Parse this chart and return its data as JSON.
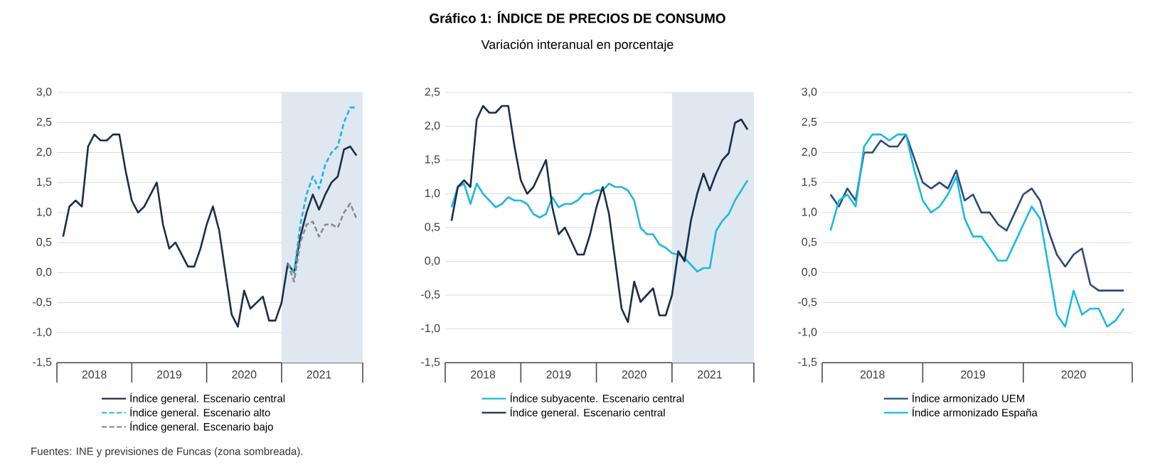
{
  "chart_data": [
    {
      "type": "other",
      "title": "Gráfico 1: ÍNDICE DE PRECIOS DE CONSUMO",
      "subtitle": "Variación interanual en porcentaje",
      "annotations": [
        "Fuentes: INE y previsiones de Funcas (zona sombreada)."
      ]
    },
    {
      "type": "line",
      "x": [
        "2018-01",
        "2018-02",
        "2018-03",
        "2018-04",
        "2018-05",
        "2018-06",
        "2018-07",
        "2018-08",
        "2018-09",
        "2018-10",
        "2018-11",
        "2018-12",
        "2019-01",
        "2019-02",
        "2019-03",
        "2019-04",
        "2019-05",
        "2019-06",
        "2019-07",
        "2019-08",
        "2019-09",
        "2019-10",
        "2019-11",
        "2019-12",
        "2020-01",
        "2020-02",
        "2020-03",
        "2020-04",
        "2020-05",
        "2020-06",
        "2020-07",
        "2020-08",
        "2020-09",
        "2020-10",
        "2020-11",
        "2020-12",
        "2021-01",
        "2021-02",
        "2021-03",
        "2021-04",
        "2021-05",
        "2021-06",
        "2021-07",
        "2021-08",
        "2021-09",
        "2021-10",
        "2021-11",
        "2021-12"
      ],
      "xlim": [
        "2017-12",
        "2022-01"
      ],
      "xticks": [
        {
          "value": "2017-12",
          "label": null
        },
        {
          "value": "2018-06",
          "label": "2018"
        },
        {
          "value": "2018-12",
          "label": null
        },
        {
          "value": "2019-06",
          "label": "2019"
        },
        {
          "value": "2019-12",
          "label": null
        },
        {
          "value": "2020-06",
          "label": "2020"
        },
        {
          "value": "2020-12",
          "label": null
        },
        {
          "value": "2021-06",
          "label": "2021"
        },
        {
          "value": "2022-01",
          "label": null
        }
      ],
      "ylim": [
        -1.5,
        3.0
      ],
      "yticks": [
        {
          "value": -1.5,
          "label": "-1,5"
        },
        {
          "value": -1.0,
          "label": "-1,0"
        },
        {
          "value": -0.5,
          "label": "-0,5"
        },
        {
          "value": 0,
          "label": "0,0"
        },
        {
          "value": 0.5,
          "label": "0,5"
        },
        {
          "value": 1.0,
          "label": "1,0"
        },
        {
          "value": 1.5,
          "label": "1,5"
        },
        {
          "value": 2.0,
          "label": "2,0"
        },
        {
          "value": 2.5,
          "label": "2,5"
        },
        {
          "value": 3.0,
          "label": "3,0"
        }
      ],
      "grid": "y",
      "legend": "bottom",
      "marker": "none",
      "bands": [
        {
          "axis": "x",
          "from": "2020-12",
          "to": "2022-01",
          "color": "#dfe8f1"
        }
      ],
      "series": [
        {
          "name": "Índice general. Escenario central",
          "color": "#1c2e4a",
          "line_style": "solid",
          "values": [
            0.6,
            1.1,
            1.2,
            1.1,
            2.1,
            2.3,
            2.2,
            2.2,
            2.3,
            2.3,
            1.7,
            1.2,
            1.0,
            1.1,
            1.3,
            1.5,
            0.8,
            0.4,
            0.5,
            0.3,
            0.1,
            0.1,
            0.4,
            0.8,
            1.1,
            0.7,
            0.0,
            -0.7,
            -0.9,
            -0.3,
            -0.6,
            -0.5,
            -0.4,
            -0.8,
            -0.8,
            -0.5,
            0.15,
            0.0,
            0.6,
            1.0,
            1.3,
            1.05,
            1.3,
            1.5,
            1.6,
            2.05,
            2.1,
            1.95
          ]
        },
        {
          "name": "Índice general. Escenario alto",
          "color": "#1eb4e6",
          "line_style": "dashed",
          "x": [
            "2021-01",
            "2021-02",
            "2021-03",
            "2021-04",
            "2021-05",
            "2021-06",
            "2021-07",
            "2021-08",
            "2021-09",
            "2021-10",
            "2021-11",
            "2021-12"
          ],
          "values": [
            0.15,
            0.0,
            0.8,
            1.3,
            1.6,
            1.4,
            1.8,
            2.0,
            2.1,
            2.5,
            2.75,
            2.75
          ]
        },
        {
          "name": "Índice general. Escenario bajo",
          "color": "#8a8a8a",
          "line_style": "dashed",
          "x": [
            "2021-01",
            "2021-02",
            "2021-03",
            "2021-04",
            "2021-05",
            "2021-06",
            "2021-07",
            "2021-08",
            "2021-09",
            "2021-10",
            "2021-11",
            "2021-12"
          ],
          "values": [
            0.15,
            -0.15,
            0.5,
            0.8,
            0.85,
            0.6,
            0.8,
            0.8,
            0.75,
            1.0,
            1.15,
            0.9
          ]
        }
      ]
    },
    {
      "type": "line",
      "x": [
        "2018-01",
        "2018-02",
        "2018-03",
        "2018-04",
        "2018-05",
        "2018-06",
        "2018-07",
        "2018-08",
        "2018-09",
        "2018-10",
        "2018-11",
        "2018-12",
        "2019-01",
        "2019-02",
        "2019-03",
        "2019-04",
        "2019-05",
        "2019-06",
        "2019-07",
        "2019-08",
        "2019-09",
        "2019-10",
        "2019-11",
        "2019-12",
        "2020-01",
        "2020-02",
        "2020-03",
        "2020-04",
        "2020-05",
        "2020-06",
        "2020-07",
        "2020-08",
        "2020-09",
        "2020-10",
        "2020-11",
        "2020-12",
        "2021-01",
        "2021-02",
        "2021-03",
        "2021-04",
        "2021-05",
        "2021-06",
        "2021-07",
        "2021-08",
        "2021-09",
        "2021-10",
        "2021-11",
        "2021-12"
      ],
      "xlim": [
        "2017-12",
        "2022-01"
      ],
      "xticks": [
        {
          "value": "2017-12",
          "label": null
        },
        {
          "value": "2018-06",
          "label": "2018"
        },
        {
          "value": "2018-12",
          "label": null
        },
        {
          "value": "2019-06",
          "label": "2019"
        },
        {
          "value": "2019-12",
          "label": null
        },
        {
          "value": "2020-06",
          "label": "2020"
        },
        {
          "value": "2020-12",
          "label": null
        },
        {
          "value": "2021-06",
          "label": "2021"
        },
        {
          "value": "2022-01",
          "label": null
        }
      ],
      "ylim": [
        -1.5,
        2.5
      ],
      "yticks": [
        {
          "value": -1.5,
          "label": "-1,5"
        },
        {
          "value": -1.0,
          "label": "-1,0"
        },
        {
          "value": -0.5,
          "label": "-0,5"
        },
        {
          "value": 0,
          "label": "0,0"
        },
        {
          "value": 0.5,
          "label": "0,5"
        },
        {
          "value": 1.0,
          "label": "1,0"
        },
        {
          "value": 1.5,
          "label": "1,5"
        },
        {
          "value": 2.0,
          "label": "2,0"
        },
        {
          "value": 2.5,
          "label": "2,5"
        }
      ],
      "grid": "y",
      "legend": "bottom",
      "marker": "none",
      "bands": [
        {
          "axis": "x",
          "from": "2020-12",
          "to": "2022-01",
          "color": "#dfe8f1"
        }
      ],
      "series": [
        {
          "name": "Índice subyacente. Escenario central",
          "color": "#22b8e0",
          "line_style": "solid",
          "values": [
            0.8,
            1.1,
            1.15,
            0.85,
            1.15,
            1.0,
            0.9,
            0.8,
            0.85,
            0.95,
            0.9,
            0.9,
            0.85,
            0.7,
            0.65,
            0.7,
            0.95,
            0.8,
            0.85,
            0.85,
            0.9,
            1.0,
            1.0,
            1.05,
            1.05,
            1.15,
            1.1,
            1.1,
            1.05,
            0.9,
            0.5,
            0.4,
            0.4,
            0.25,
            0.2,
            0.12,
            0.1,
            0.05,
            -0.05,
            -0.15,
            -0.1,
            -0.1,
            0.45,
            0.6,
            0.7,
            0.9,
            1.05,
            1.2
          ]
        },
        {
          "name": "Índice general. Escenario central",
          "color": "#1c2e4a",
          "line_style": "solid",
          "values": [
            0.6,
            1.1,
            1.2,
            1.1,
            2.1,
            2.3,
            2.2,
            2.2,
            2.3,
            2.3,
            1.7,
            1.2,
            1.0,
            1.1,
            1.3,
            1.5,
            0.8,
            0.4,
            0.5,
            0.3,
            0.1,
            0.1,
            0.4,
            0.8,
            1.1,
            0.7,
            0.0,
            -0.7,
            -0.9,
            -0.3,
            -0.6,
            -0.5,
            -0.4,
            -0.8,
            -0.8,
            -0.5,
            0.15,
            0.0,
            0.6,
            1.0,
            1.3,
            1.05,
            1.3,
            1.5,
            1.6,
            2.05,
            2.1,
            1.95
          ]
        }
      ]
    },
    {
      "type": "line",
      "x": [
        "2018-01",
        "2018-02",
        "2018-03",
        "2018-04",
        "2018-05",
        "2018-06",
        "2018-07",
        "2018-08",
        "2018-09",
        "2018-10",
        "2018-11",
        "2018-12",
        "2019-01",
        "2019-02",
        "2019-03",
        "2019-04",
        "2019-05",
        "2019-06",
        "2019-07",
        "2019-08",
        "2019-09",
        "2019-10",
        "2019-11",
        "2019-12",
        "2020-01",
        "2020-02",
        "2020-03",
        "2020-04",
        "2020-05",
        "2020-06",
        "2020-07",
        "2020-08",
        "2020-09",
        "2020-10",
        "2020-11",
        "2020-12"
      ],
      "xlim": [
        "2017-12",
        "2021-01"
      ],
      "xticks": [
        {
          "value": "2017-12",
          "label": null
        },
        {
          "value": "2018-06",
          "label": "2018"
        },
        {
          "value": "2018-12",
          "label": null
        },
        {
          "value": "2019-06",
          "label": "2019"
        },
        {
          "value": "2019-12",
          "label": null
        },
        {
          "value": "2020-06",
          "label": "2020"
        },
        {
          "value": "2021-01",
          "label": null
        }
      ],
      "ylim": [
        -1.5,
        3.0
      ],
      "yticks": [
        {
          "value": -1.5,
          "label": "-1,5"
        },
        {
          "value": -1.0,
          "label": "-1,0"
        },
        {
          "value": -0.5,
          "label": "-0,5"
        },
        {
          "value": 0,
          "label": "0,0"
        },
        {
          "value": 0.5,
          "label": "0,5"
        },
        {
          "value": 1.0,
          "label": "1,0"
        },
        {
          "value": 1.5,
          "label": "1,5"
        },
        {
          "value": 2.0,
          "label": "2,0"
        },
        {
          "value": 2.5,
          "label": "2,5"
        },
        {
          "value": 3.0,
          "label": "3,0"
        }
      ],
      "grid": "y",
      "legend": "bottom",
      "marker": "none",
      "series": [
        {
          "name": "Índice armonizado UEM",
          "color": "#2c4a7c",
          "line_style": "solid",
          "values": [
            1.3,
            1.1,
            1.4,
            1.2,
            2.0,
            2.0,
            2.2,
            2.1,
            2.1,
            2.3,
            1.9,
            1.5,
            1.4,
            1.5,
            1.4,
            1.7,
            1.2,
            1.3,
            1.0,
            1.0,
            0.8,
            0.7,
            1.0,
            1.3,
            1.4,
            1.2,
            0.7,
            0.3,
            0.1,
            0.3,
            0.4,
            -0.2,
            -0.3,
            -0.3,
            -0.3,
            -0.3
          ]
        },
        {
          "name": "Índice armonizado España",
          "color": "#16bbe4",
          "line_style": "solid",
          "values": [
            0.7,
            1.2,
            1.3,
            1.1,
            2.1,
            2.3,
            2.3,
            2.2,
            2.3,
            2.3,
            1.7,
            1.2,
            1.0,
            1.1,
            1.3,
            1.6,
            0.9,
            0.6,
            0.6,
            0.4,
            0.2,
            0.2,
            0.5,
            0.8,
            1.1,
            0.9,
            0.1,
            -0.7,
            -0.9,
            -0.3,
            -0.7,
            -0.6,
            -0.6,
            -0.9,
            -0.8,
            -0.6
          ]
        }
      ]
    }
  ]
}
